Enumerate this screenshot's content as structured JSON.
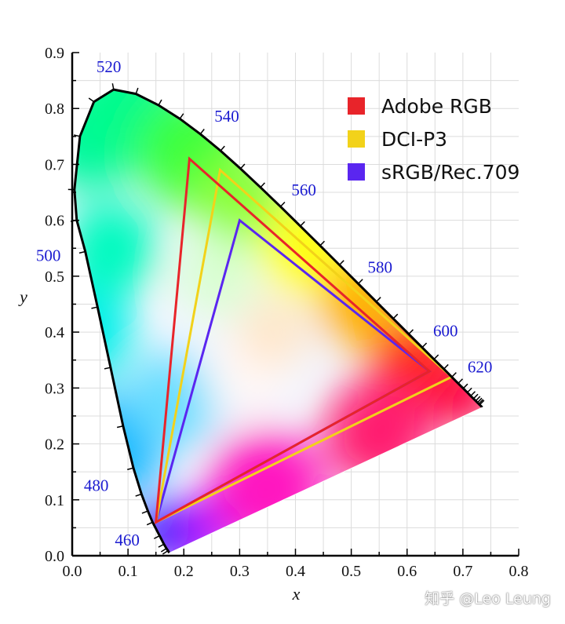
{
  "chart_data": {
    "type": "chromaticity-diagram",
    "xlabel": "x",
    "ylabel": "y",
    "xlim": [
      0.0,
      0.8
    ],
    "ylim": [
      0.0,
      0.9
    ],
    "x_ticks": [
      "0.0",
      "0.1",
      "0.2",
      "0.3",
      "0.4",
      "0.5",
      "0.6",
      "0.7",
      "0.8"
    ],
    "y_ticks": [
      "0.0",
      "0.1",
      "0.2",
      "0.3",
      "0.4",
      "0.5",
      "0.6",
      "0.7",
      "0.8",
      "0.9"
    ],
    "grid": true,
    "legend_position": "top-right",
    "spectral_locus": [
      [
        0.1741,
        0.005
      ],
      [
        0.1716,
        0.009
      ],
      [
        0.1689,
        0.013
      ],
      [
        0.1644,
        0.0206
      ],
      [
        0.1566,
        0.0357
      ],
      [
        0.144,
        0.06
      ],
      [
        0.1355,
        0.08
      ],
      [
        0.1241,
        0.1102
      ],
      [
        0.1096,
        0.157
      ],
      [
        0.0913,
        0.232
      ],
      [
        0.0687,
        0.3367
      ],
      [
        0.0454,
        0.4448
      ],
      [
        0.0235,
        0.5441
      ],
      [
        0.0082,
        0.6
      ],
      [
        0.0039,
        0.6548
      ],
      [
        0.0139,
        0.7502
      ],
      [
        0.0389,
        0.812
      ],
      [
        0.0743,
        0.8338
      ],
      [
        0.1142,
        0.8262
      ],
      [
        0.1547,
        0.8059
      ],
      [
        0.1929,
        0.7816
      ],
      [
        0.2296,
        0.7543
      ],
      [
        0.2658,
        0.7243
      ],
      [
        0.3016,
        0.6923
      ],
      [
        0.3373,
        0.6589
      ],
      [
        0.3731,
        0.6245
      ],
      [
        0.4087,
        0.5896
      ],
      [
        0.4441,
        0.5547
      ],
      [
        0.4788,
        0.5202
      ],
      [
        0.5125,
        0.4866
      ],
      [
        0.5448,
        0.4544
      ],
      [
        0.5752,
        0.4242
      ],
      [
        0.6029,
        0.3965
      ],
      [
        0.627,
        0.3725
      ],
      [
        0.6482,
        0.3514
      ],
      [
        0.6658,
        0.334
      ],
      [
        0.6801,
        0.3197
      ],
      [
        0.6915,
        0.3083
      ],
      [
        0.7006,
        0.2993
      ],
      [
        0.7079,
        0.292
      ],
      [
        0.714,
        0.2859
      ],
      [
        0.719,
        0.2809
      ],
      [
        0.723,
        0.277
      ],
      [
        0.726,
        0.274
      ],
      [
        0.7283,
        0.2717
      ],
      [
        0.73,
        0.27
      ],
      [
        0.7347,
        0.2653
      ]
    ],
    "wavelength_labels": [
      {
        "label": "460",
        "x": 0.144,
        "y": 0.0297
      },
      {
        "label": "480",
        "x": 0.0913,
        "y": 0.1327
      },
      {
        "label": "500",
        "x": 0.0082,
        "y": 0.5384
      },
      {
        "label": "520",
        "x": 0.0743,
        "y": 0.8338
      },
      {
        "label": "540",
        "x": 0.2296,
        "y": 0.7543
      },
      {
        "label": "560",
        "x": 0.3731,
        "y": 0.6245
      },
      {
        "label": "580",
        "x": 0.5125,
        "y": 0.4866
      },
      {
        "label": "600",
        "x": 0.627,
        "y": 0.3725
      },
      {
        "label": "620",
        "x": 0.6915,
        "y": 0.3083
      }
    ],
    "series": [
      {
        "name": "Adobe RGB",
        "color": "#e8242a",
        "points": [
          [
            0.64,
            0.33
          ],
          [
            0.21,
            0.71
          ],
          [
            0.15,
            0.06
          ]
        ]
      },
      {
        "name": "DCI-P3",
        "color": "#f2d21a",
        "points": [
          [
            0.68,
            0.32
          ],
          [
            0.265,
            0.69
          ],
          [
            0.15,
            0.06
          ]
        ]
      },
      {
        "name": "sRGB/Rec.709",
        "color": "#5a26f0",
        "points": [
          [
            0.64,
            0.33
          ],
          [
            0.3,
            0.6
          ],
          [
            0.15,
            0.06
          ]
        ]
      }
    ]
  },
  "watermark": "知乎 @Leo Leung"
}
